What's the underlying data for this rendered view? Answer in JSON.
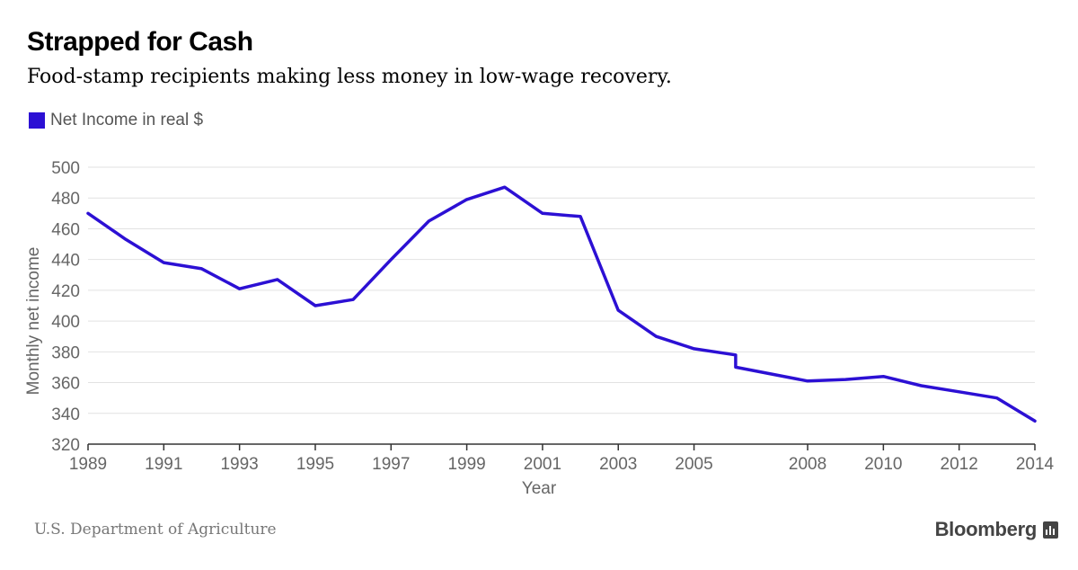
{
  "header": {
    "title": "Strapped for Cash",
    "subtitle": "Food-stamp recipients making less money in low-wage recovery."
  },
  "legend": {
    "label": "Net Income in real $",
    "color": "#2c10d4"
  },
  "footer": {
    "source": "U.S. Department of Agriculture",
    "brand": "Bloomberg",
    "brand_icon": "bloomberg-chart-icon"
  },
  "chart_data": {
    "type": "line",
    "title": "Strapped for Cash",
    "subtitle": "Food-stamp recipients making less money in low-wage recovery.",
    "xlabel": "Year",
    "ylabel": "Monthly net income",
    "xlim": [
      1989,
      2014
    ],
    "ylim": [
      320,
      500
    ],
    "x_ticks": [
      "1989",
      "1991",
      "1993",
      "1995",
      "1997",
      "1999",
      "2001",
      "2003",
      "2005",
      "2008",
      "2010",
      "2012",
      "2014"
    ],
    "y_ticks": [
      320,
      340,
      360,
      380,
      400,
      420,
      440,
      460,
      480,
      500
    ],
    "grid": true,
    "legend_position": "top-left",
    "series": [
      {
        "name": "Net Income in real $",
        "color": "#2c10d4",
        "x": [
          1989,
          1990,
          1991,
          1992,
          1993,
          1994,
          1995,
          1996,
          1997,
          1998,
          1999,
          2000,
          2001,
          2002,
          2003,
          2004,
          2005,
          2006.1,
          2006.1,
          2008,
          2009,
          2010,
          2011,
          2012,
          2013,
          2014
        ],
        "y": [
          470,
          453,
          438,
          434,
          421,
          427,
          410,
          414,
          440,
          465,
          479,
          487,
          470,
          468,
          407,
          390,
          382,
          378,
          370,
          361,
          362,
          364,
          358,
          354,
          350,
          335
        ]
      }
    ]
  }
}
